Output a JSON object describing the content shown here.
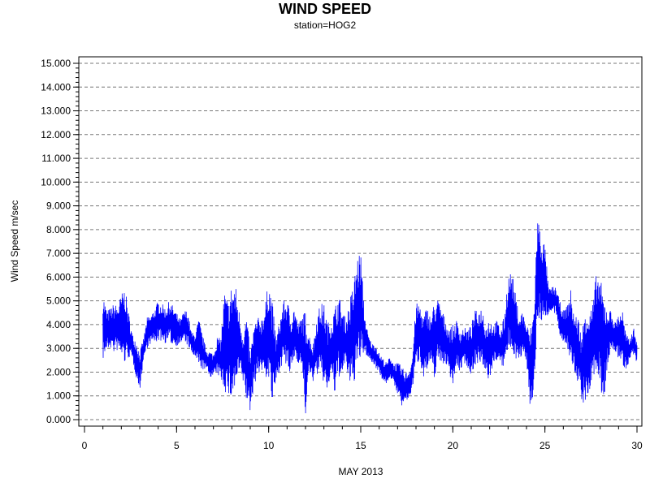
{
  "chart_data": {
    "type": "line",
    "title": "WIND SPEED",
    "subtitle": "station=HOG2",
    "xlabel": "MAY 2013",
    "ylabel": "Wind Speed m/sec",
    "xlim": [
      0,
      30
    ],
    "ylim": [
      0,
      15
    ],
    "x_ticks": [
      0,
      5,
      10,
      15,
      20,
      25,
      30
    ],
    "y_ticks": [
      0,
      1,
      2,
      3,
      4,
      5,
      6,
      7,
      8,
      9,
      10,
      11,
      12,
      13,
      14,
      15
    ],
    "y_tick_labels": [
      "0.000",
      "1.000",
      "2.000",
      "3.000",
      "4.000",
      "5.000",
      "6.000",
      "7.000",
      "8.000",
      "9.000",
      "10.000",
      "11.000",
      "12.000",
      "13.000",
      "14.000",
      "15.000"
    ],
    "grid": "horizontal dashed",
    "series_color": "#0000ff",
    "series": [
      {
        "x": [
          1.0,
          1.2,
          1.4,
          1.6,
          1.8,
          2.0,
          2.2,
          2.4,
          2.6,
          2.8,
          3.0,
          3.2,
          3.4,
          3.6,
          3.8,
          4.0,
          4.2,
          4.4,
          4.6,
          4.8,
          5.0,
          5.2,
          5.4,
          5.6,
          5.8,
          6.0,
          6.2,
          6.4,
          6.6,
          6.8,
          7.0,
          7.2,
          7.4,
          7.6,
          7.8,
          8.0,
          8.2,
          8.4,
          8.6,
          8.8,
          9.0,
          9.2,
          9.4,
          9.6,
          9.8,
          10.0,
          10.2,
          10.4,
          10.6,
          10.8,
          11.0,
          11.2,
          11.4,
          11.6,
          11.8,
          12.0,
          12.2,
          12.4,
          12.6,
          12.8,
          13.0,
          13.2,
          13.4,
          13.6,
          13.8,
          14.0,
          14.2,
          14.4,
          14.6,
          14.8,
          15.0,
          15.2,
          15.4,
          15.6,
          15.8,
          16.0,
          16.2,
          16.4,
          16.6,
          16.8,
          17.0,
          17.2,
          17.4,
          17.6,
          17.8,
          18.0,
          18.2,
          18.4,
          18.6,
          18.8,
          19.0,
          19.2,
          19.4,
          19.6,
          19.8,
          20.0,
          20.2,
          20.4,
          20.6,
          20.8,
          21.0,
          21.2,
          21.4,
          21.6,
          21.8,
          22.0,
          22.2,
          22.4,
          22.6,
          22.8,
          23.0,
          23.2,
          23.4,
          23.6,
          23.8,
          24.0,
          24.2,
          24.4,
          24.6,
          24.8,
          25.0,
          25.2,
          25.4,
          25.6,
          25.8,
          26.0,
          26.2,
          26.4,
          26.6,
          26.8,
          27.0,
          27.2,
          27.4,
          27.6,
          27.8,
          28.0,
          28.2,
          28.4,
          28.6,
          28.8,
          29.0,
          29.2,
          29.4,
          29.6,
          29.8,
          30.0
        ],
        "low": [
          2.5,
          2.9,
          3.0,
          2.8,
          2.9,
          2.6,
          2.3,
          2.6,
          2.5,
          1.8,
          1.2,
          2.5,
          3.0,
          3.2,
          3.2,
          3.3,
          3.3,
          3.2,
          3.3,
          3.1,
          3.1,
          3.2,
          3.3,
          3.1,
          2.8,
          2.6,
          2.2,
          2.1,
          2.1,
          1.8,
          1.8,
          1.9,
          1.7,
          1.2,
          0.9,
          0.8,
          1.2,
          1.9,
          1.6,
          0.7,
          0.3,
          1.4,
          1.9,
          2.0,
          1.8,
          1.6,
          0.6,
          1.5,
          2.1,
          2.4,
          2.1,
          1.8,
          2.6,
          2.4,
          2.2,
          0.1,
          2.0,
          1.6,
          1.9,
          1.8,
          1.5,
          1.1,
          2.0,
          0.9,
          1.8,
          1.7,
          2.4,
          1.2,
          1.5,
          1.9,
          2.5,
          2.8,
          2.6,
          2.4,
          2.2,
          2.0,
          1.6,
          1.5,
          1.8,
          1.4,
          1.1,
          0.5,
          0.7,
          0.8,
          1.3,
          2.2,
          2.5,
          1.8,
          2.0,
          2.3,
          1.7,
          2.5,
          2.3,
          2.4,
          1.9,
          1.5,
          2.1,
          2.0,
          2.4,
          2.2,
          1.8,
          2.3,
          2.4,
          2.1,
          1.8,
          1.6,
          2.3,
          2.5,
          2.2,
          2.2,
          2.8,
          2.9,
          2.6,
          2.4,
          2.7,
          2.5,
          0.5,
          0.9,
          4.3,
          4.0,
          4.3,
          4.4,
          4.5,
          4.4,
          3.5,
          3.3,
          3.1,
          2.2,
          2.0,
          1.5,
          0.8,
          0.5,
          1.0,
          1.7,
          2.0,
          1.2,
          0.7,
          2.3,
          2.8,
          2.9,
          2.5,
          2.4,
          2.0,
          2.4,
          2.7,
          2.2
        ],
        "high": [
          5.4,
          4.6,
          4.7,
          4.9,
          4.8,
          5.3,
          5.6,
          4.5,
          3.6,
          3.4,
          2.9,
          3.4,
          4.3,
          4.4,
          4.7,
          5.0,
          4.9,
          4.7,
          5.0,
          4.8,
          4.5,
          4.2,
          4.6,
          4.6,
          3.7,
          3.6,
          4.3,
          3.6,
          3.0,
          2.9,
          2.8,
          3.5,
          3.4,
          5.5,
          5.0,
          5.8,
          5.7,
          4.6,
          3.6,
          4.5,
          2.8,
          4.0,
          4.3,
          4.3,
          4.8,
          6.0,
          5.0,
          3.4,
          4.2,
          5.0,
          5.1,
          4.4,
          4.8,
          4.0,
          4.4,
          4.6,
          3.6,
          3.1,
          4.3,
          4.9,
          4.9,
          4.1,
          4.2,
          4.8,
          5.3,
          4.7,
          4.2,
          5.1,
          5.7,
          6.9,
          7.1,
          4.5,
          3.6,
          3.2,
          3.2,
          2.8,
          2.6,
          2.4,
          2.7,
          2.4,
          2.4,
          2.3,
          2.0,
          2.1,
          2.6,
          4.9,
          4.9,
          4.4,
          4.8,
          4.3,
          5.0,
          5.1,
          4.7,
          4.2,
          3.9,
          4.0,
          4.2,
          3.8,
          3.9,
          3.8,
          4.0,
          4.6,
          4.6,
          4.8,
          4.0,
          4.4,
          4.0,
          4.2,
          3.8,
          4.4,
          6.1,
          6.3,
          5.3,
          4.4,
          4.6,
          4.0,
          3.8,
          4.8,
          8.7,
          7.8,
          7.4,
          5.5,
          5.6,
          5.6,
          5.0,
          4.6,
          4.8,
          5.5,
          4.4,
          4.4,
          3.5,
          5.1,
          4.6,
          4.9,
          6.3,
          6.0,
          5.2,
          4.7,
          4.6,
          4.1,
          4.5,
          4.7,
          3.6,
          3.4,
          3.9,
          3.4
        ]
      }
    ]
  }
}
